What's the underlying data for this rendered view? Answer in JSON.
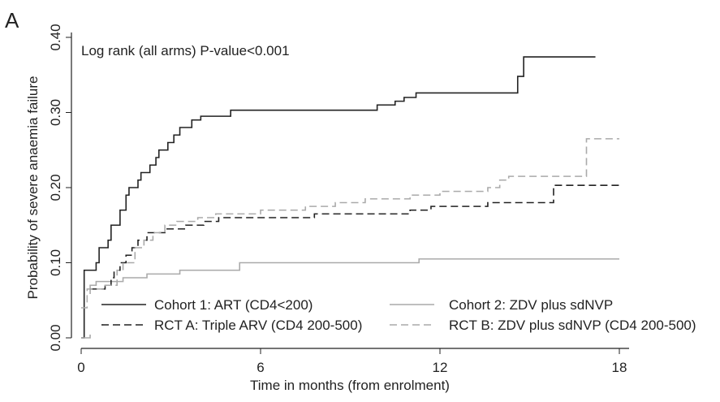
{
  "panel_label": "A",
  "chart_data": {
    "type": "step",
    "annotation": "Log rank (all arms) P-value<0.001",
    "xlabel": "Time in months (from enrolment)",
    "ylabel": "Probability of severe anaemia failure",
    "xlim": [
      0,
      18
    ],
    "xticks": [
      0,
      6,
      12,
      18
    ],
    "ylim": [
      0,
      0.4
    ],
    "yticks": [
      {
        "value": 0,
        "label": "0.00"
      },
      {
        "value": 0.1,
        "label": "0.10"
      },
      {
        "value": 0.2,
        "label": "0.20"
      },
      {
        "value": 0.3,
        "label": "0.30"
      },
      {
        "value": 0.4,
        "label": "0.40"
      }
    ],
    "series": [
      {
        "name": "Cohort 1: ART (CD4<200)",
        "color": "#222222",
        "dash": "solid",
        "x": [
          0,
          0.1,
          0.5,
          0.6,
          0.9,
          1.0,
          1.3,
          1.5,
          1.6,
          1.9,
          2.0,
          2.3,
          2.5,
          2.6,
          2.9,
          3.1,
          3.3,
          3.7,
          4.0,
          5.0,
          9.9,
          10.5,
          10.8,
          11.2,
          14.6,
          14.8,
          17.2
        ],
        "y": [
          0,
          0.09,
          0.1,
          0.12,
          0.13,
          0.15,
          0.17,
          0.19,
          0.2,
          0.21,
          0.22,
          0.23,
          0.24,
          0.25,
          0.26,
          0.27,
          0.28,
          0.29,
          0.295,
          0.303,
          0.31,
          0.315,
          0.32,
          0.326,
          0.348,
          0.374,
          0.374
        ]
      },
      {
        "name": "Cohort 2: ZDV plus sdNVP",
        "color": "#aaaaaa",
        "dash": "solid",
        "x": [
          0,
          0.3,
          0.5,
          1.4,
          2.2,
          3.3,
          5.3,
          11.3,
          18
        ],
        "y": [
          0,
          0.07,
          0.075,
          0.08,
          0.085,
          0.09,
          0.1,
          0.105,
          0.105
        ]
      },
      {
        "name": "RCT A: Triple ARV (CD4 200-500)",
        "color": "#222222",
        "dash": "dashed",
        "x": [
          0.3,
          0.8,
          1.0,
          1.1,
          1.3,
          1.5,
          1.7,
          1.9,
          2.2,
          2.8,
          3.5,
          4.1,
          4.6,
          7.8,
          11.0,
          11.7,
          13.6,
          15.8,
          18
        ],
        "y": [
          0.065,
          0.07,
          0.08,
          0.09,
          0.1,
          0.11,
          0.12,
          0.13,
          0.14,
          0.145,
          0.15,
          0.155,
          0.16,
          0.165,
          0.17,
          0.175,
          0.18,
          0.203,
          0.203
        ]
      },
      {
        "name": "RCT B: ZDV plus sdNVP (CD4 200-500)",
        "color": "#aaaaaa",
        "dash": "dashed",
        "x": [
          0,
          0.2,
          0.8,
          1.2,
          1.4,
          1.8,
          2.1,
          2.4,
          2.8,
          3.2,
          3.9,
          4.5,
          6.0,
          7.5,
          8.5,
          9.5,
          11.0,
          12.0,
          13.6,
          14.0,
          14.3,
          16.9,
          18
        ],
        "y": [
          0.04,
          0.065,
          0.07,
          0.09,
          0.1,
          0.12,
          0.13,
          0.14,
          0.15,
          0.155,
          0.16,
          0.165,
          0.17,
          0.175,
          0.18,
          0.185,
          0.19,
          0.195,
          0.2,
          0.21,
          0.215,
          0.265,
          0.265
        ]
      }
    ]
  }
}
